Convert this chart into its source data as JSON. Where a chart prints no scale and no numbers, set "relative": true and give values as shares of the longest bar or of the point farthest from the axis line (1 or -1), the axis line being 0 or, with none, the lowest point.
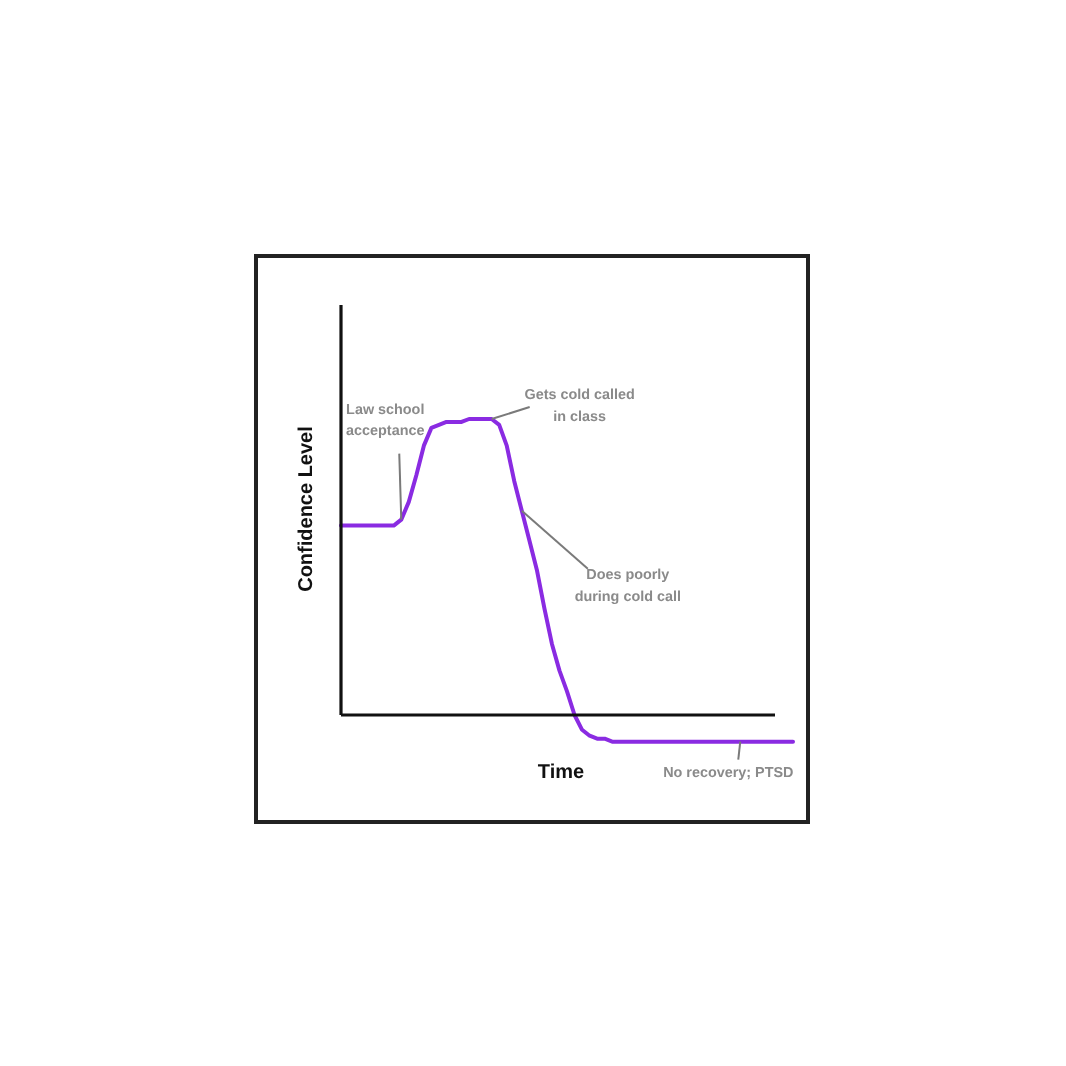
{
  "chart_data": {
    "type": "line",
    "relative": true,
    "xlabel": "Time",
    "ylabel": "Confidence Level",
    "line_style": "solid",
    "categories": [
      null,
      null,
      null,
      null,
      null,
      null,
      null,
      null,
      null,
      null,
      null,
      null,
      null,
      null,
      null,
      null,
      null,
      null,
      null,
      null,
      null,
      null,
      null,
      null,
      null,
      null,
      null,
      null,
      null,
      null,
      null,
      null,
      null,
      null,
      null,
      null,
      null,
      null,
      null,
      null,
      null,
      null,
      null,
      null,
      null,
      null,
      null,
      null,
      null,
      null,
      null,
      null,
      null,
      null,
      null,
      null,
      null,
      null,
      null,
      null,
      null
    ],
    "series": [
      {
        "color": "#8a2be2",
        "values": [
          0.64,
          0.64,
          0.64,
          0.64,
          0.64,
          0.64,
          0.64,
          0.64,
          0.66,
          0.72,
          0.81,
          0.91,
          0.97,
          0.98,
          0.99,
          0.99,
          0.99,
          1.0,
          1.0,
          1.0,
          1.0,
          0.98,
          0.91,
          0.79,
          0.69,
          0.59,
          0.49,
          0.36,
          0.24,
          0.15,
          0.08,
          0.0,
          -0.05,
          -0.07,
          -0.08,
          -0.08,
          -0.09,
          -0.09,
          -0.09,
          -0.09,
          -0.09,
          -0.09,
          -0.09,
          -0.09,
          -0.09,
          -0.09,
          -0.09,
          -0.09,
          -0.09,
          -0.09,
          -0.09,
          -0.09,
          -0.09,
          -0.09,
          -0.09,
          -0.09,
          -0.09,
          -0.09,
          -0.09,
          -0.09,
          -0.09
        ]
      }
    ],
    "annotations": [
      "Law school\nacceptance",
      "Gets cold called\nin class",
      "Does poorly\nduring cold call",
      "No recovery; PTSD"
    ]
  }
}
